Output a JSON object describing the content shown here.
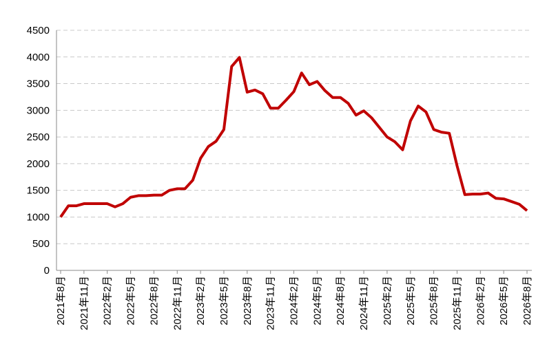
{
  "chart_data": {
    "type": "line",
    "categories": [
      "2021年8月",
      null,
      null,
      "2021年11月",
      null,
      null,
      "2022年2月",
      null,
      null,
      "2022年5月",
      null,
      null,
      "2022年8月",
      null,
      null,
      "2022年11月",
      null,
      null,
      "2023年2月",
      null,
      null,
      "2023年5月",
      null,
      null,
      "2023年8月",
      null,
      null,
      "2023年11月",
      null,
      null,
      "2024年2月",
      null,
      null,
      "2024年5月",
      null,
      null,
      "2024年8月",
      null,
      null,
      "2024年11月",
      null,
      null,
      "2025年2月",
      null,
      null,
      "2025年5月",
      null,
      null,
      "2025年8月",
      null,
      null,
      "2025年11月",
      null,
      null,
      "2026年2月",
      null,
      null,
      "2026年5月",
      null,
      null,
      "2026年8月"
    ],
    "series": [
      {
        "color": "#c00000",
        "values": [
          1000,
          1210,
          1210,
          1250,
          1250,
          1250,
          1250,
          1190,
          1250,
          1370,
          1400,
          1400,
          1410,
          1410,
          1500,
          1530,
          1530,
          1690,
          2100,
          2320,
          2420,
          2640,
          3820,
          3990,
          3340,
          3380,
          3310,
          3040,
          3040,
          3190,
          3350,
          3700,
          3480,
          3540,
          3370,
          3240,
          3240,
          3130,
          2910,
          2990,
          2860,
          2680,
          2500,
          2410,
          2260,
          2800,
          3080,
          2970,
          2640,
          2590,
          2570,
          1960,
          1420,
          1430,
          1430,
          1450,
          1350,
          1340,
          1290,
          1240,
          1120
        ]
      }
    ],
    "ylim": [
      0,
      4500
    ],
    "yticks": [
      0,
      500,
      1000,
      1500,
      2000,
      2500,
      3000,
      3500,
      4000,
      4500
    ],
    "grid": true
  }
}
